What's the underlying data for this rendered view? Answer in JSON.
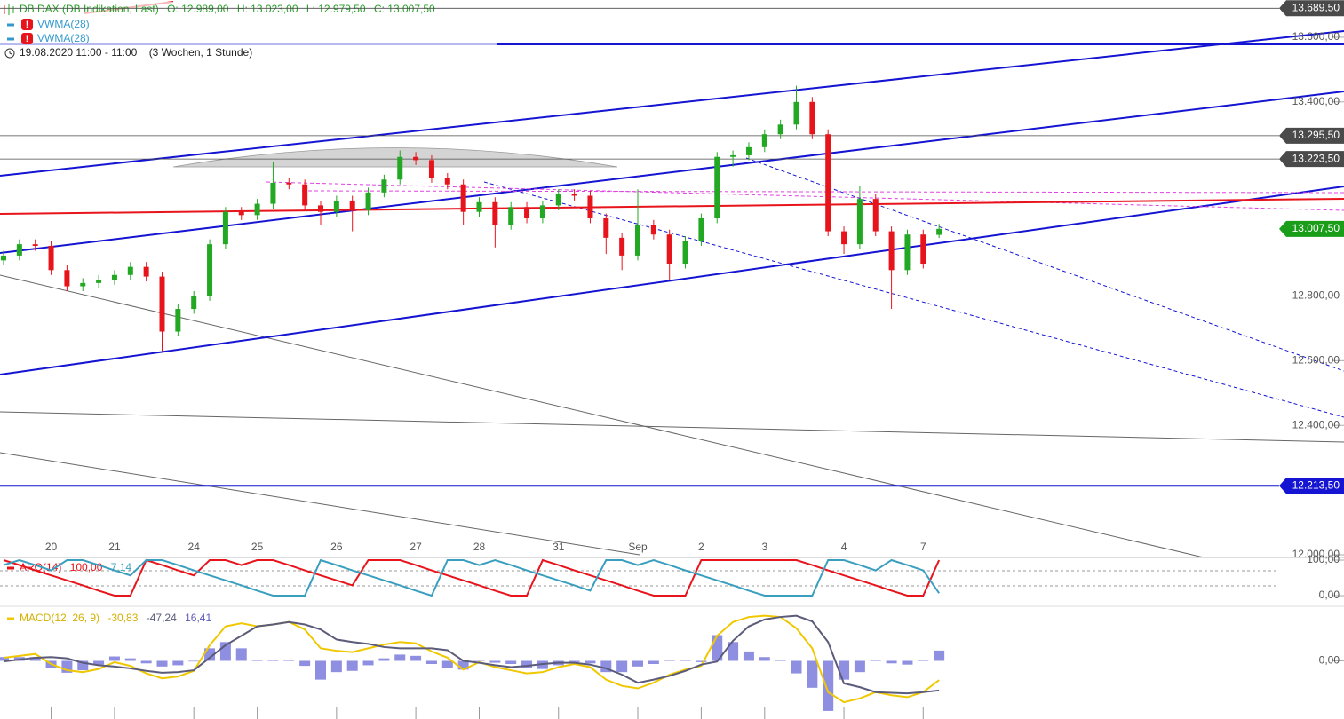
{
  "chart_data": {
    "type": "candlestick",
    "title": "DB DAX (DB Indikation, Last)",
    "ohlc_labels": [
      "O: 12.989,00",
      "H: 13.023,00",
      "L: 12.979,50",
      "C: 13.007,50"
    ],
    "overlays": [
      {
        "name": "VWMA(28)",
        "color": "#3399cc"
      },
      {
        "name": "VWMA(28)",
        "color": "#3399cc"
      }
    ],
    "period": "19.08.2020 11:00 - 11:00",
    "range": "(3 Wochen, 1 Stunde)",
    "up_color": "#22a822",
    "down_color": "#e8141c",
    "categories": [
      null,
      null,
      null,
      "20",
      null,
      null,
      null,
      "21",
      null,
      null,
      null,
      null,
      "24",
      null,
      null,
      null,
      "25",
      null,
      null,
      null,
      null,
      "26",
      null,
      null,
      null,
      null,
      "27",
      null,
      null,
      null,
      "28",
      null,
      null,
      null,
      null,
      "31",
      null,
      null,
      null,
      null,
      "Sep",
      null,
      null,
      null,
      "2",
      null,
      null,
      null,
      "3",
      null,
      null,
      null,
      null,
      "4",
      null,
      null,
      null,
      null,
      "7",
      null
    ],
    "open": [
      12910,
      12925,
      12960,
      12955,
      12880,
      12830,
      12840,
      12850,
      12865,
      12890,
      12860,
      12690,
      12760,
      12800,
      12960,
      13060,
      13050,
      13085,
      13150,
      13145,
      13080,
      13060,
      13095,
      13065,
      13120,
      13160,
      13230,
      13220,
      13165,
      13145,
      13060,
      13090,
      13020,
      13075,
      13040,
      13080,
      13115,
      13110,
      13040,
      12980,
      12925,
      13020,
      12990,
      12900,
      12970,
      13040,
      13230,
      13235,
      13260,
      13300,
      13330,
      13400,
      13300,
      13000,
      12960,
      13100,
      13000,
      12880,
      12990,
      12989
    ],
    "high": [
      12940,
      12975,
      12975,
      12970,
      12895,
      12855,
      12865,
      12880,
      12905,
      12905,
      12875,
      12775,
      12815,
      12975,
      13075,
      13075,
      13100,
      13215,
      13165,
      13160,
      13095,
      13110,
      13110,
      13135,
      13175,
      13250,
      13245,
      13235,
      13180,
      13160,
      13105,
      13105,
      13090,
      13090,
      13095,
      13130,
      13130,
      13125,
      13055,
      12995,
      13130,
      13035,
      13005,
      12985,
      13055,
      13245,
      13250,
      13275,
      13315,
      13345,
      13450,
      13415,
      13315,
      13015,
      13140,
      13115,
      13015,
      13005,
      13005,
      13023
    ],
    "low": [
      12895,
      12910,
      12940,
      12865,
      12815,
      12815,
      12825,
      12835,
      12850,
      12845,
      12630,
      12675,
      12745,
      12785,
      12945,
      13035,
      13035,
      13070,
      13130,
      13065,
      13020,
      13045,
      13000,
      13050,
      13105,
      13145,
      13205,
      13150,
      13130,
      13020,
      13045,
      12950,
      13005,
      13025,
      13025,
      13065,
      13095,
      13025,
      12930,
      12880,
      12910,
      12975,
      12850,
      12885,
      12955,
      13025,
      13200,
      13220,
      13245,
      13285,
      13315,
      13285,
      12985,
      12930,
      12945,
      12985,
      12760,
      12865,
      12885,
      12979.5
    ],
    "close": [
      12925,
      12960,
      12955,
      12880,
      12830,
      12840,
      12850,
      12865,
      12890,
      12860,
      12690,
      12760,
      12800,
      12960,
      13060,
      13050,
      13085,
      13150,
      13145,
      13080,
      13060,
      13095,
      13065,
      13120,
      13160,
      13230,
      13220,
      13165,
      13145,
      13060,
      13090,
      13020,
      13075,
      13040,
      13080,
      13115,
      13110,
      13040,
      12980,
      12925,
      13020,
      12990,
      12900,
      12970,
      13040,
      13230,
      13235,
      13260,
      13300,
      13330,
      13400,
      13300,
      13000,
      12960,
      13100,
      13000,
      12880,
      12990,
      12900,
      13007.5
    ],
    "ylim": [
      12000,
      13715
    ],
    "yticks": [
      {
        "value": 12000,
        "label": "12.000,00"
      },
      {
        "value": 12400,
        "label": "12.400,00"
      },
      {
        "value": 12600,
        "label": "12.600,00"
      },
      {
        "value": 12800,
        "label": "12.800,00"
      },
      {
        "value": 13400,
        "label": "13.400,00"
      },
      {
        "value": 13600,
        "label": "13.600,00"
      }
    ],
    "levels": [
      {
        "value": 13689.5,
        "label": "13.689,50",
        "color": "#4a4a4a",
        "line": true
      },
      {
        "value": 13295.5,
        "label": "13.295,50",
        "color": "#4a4a4a",
        "line": true
      },
      {
        "value": 13223.5,
        "label": "13.223,50",
        "color": "#4a4a4a",
        "line": true
      },
      {
        "value": 13007.5,
        "label": "13.007,50",
        "color": "#1a9e1a",
        "line": false
      },
      {
        "value": 12213.5,
        "label": "12.213,50",
        "color": "#1414d2",
        "line": true
      }
    ],
    "aroon": {
      "title": "ARO(14)",
      "ylim": [
        0,
        100
      ],
      "yticks": [
        {
          "value": 100,
          "label": "100,00"
        },
        {
          "value": 0,
          "label": "0,00"
        }
      ],
      "series": [
        {
          "color": "#e8141c",
          "value_label": "100,00",
          "values": [
            100,
            86,
            71,
            57,
            43,
            29,
            14,
            0,
            0,
            100,
            86,
            71,
            57,
            100,
            100,
            86,
            100,
            100,
            86,
            71,
            57,
            43,
            29,
            100,
            100,
            100,
            86,
            71,
            57,
            43,
            29,
            14,
            0,
            0,
            100,
            86,
            71,
            57,
            43,
            29,
            14,
            0,
            0,
            0,
            100,
            100,
            100,
            100,
            100,
            100,
            100,
            86,
            71,
            57,
            43,
            29,
            14,
            0,
            0,
            100
          ]
        },
        {
          "color": "#3a9fbf",
          "value_label": "7,14",
          "values": [
            86,
            100,
            86,
            71,
            100,
            100,
            86,
            71,
            57,
            100,
            100,
            86,
            71,
            57,
            43,
            29,
            14,
            0,
            0,
            0,
            100,
            86,
            71,
            57,
            43,
            29,
            14,
            0,
            100,
            100,
            86,
            100,
            86,
            71,
            57,
            43,
            29,
            14,
            100,
            100,
            86,
            100,
            86,
            71,
            57,
            43,
            29,
            14,
            0,
            0,
            0,
            0,
            100,
            100,
            86,
            71,
            100,
            86,
            71,
            7.14
          ]
        }
      ]
    },
    "macd": {
      "title": "MACD(12, 26, 9)",
      "ylim": [
        -90,
        80
      ],
      "yticks": [
        {
          "value": 0,
          "label": "0,00"
        }
      ],
      "series": [
        {
          "type": "line",
          "color": "#f0c800",
          "value_label": "-30,83",
          "values": [
            5,
            8,
            11,
            -5,
            -15,
            -18,
            -13,
            -2,
            -8,
            -20,
            -28,
            -25,
            -16,
            25,
            55,
            60,
            55,
            58,
            62,
            50,
            20,
            16,
            14,
            20,
            26,
            30,
            28,
            15,
            5,
            -14,
            -2,
            -10,
            -15,
            -20,
            -18,
            -10,
            -5,
            -10,
            -30,
            -40,
            -44,
            -35,
            -22,
            -14,
            -8,
            40,
            62,
            70,
            72,
            70,
            52,
            20,
            -50,
            -66,
            -60,
            -50,
            -55,
            -58,
            -50,
            -30.83
          ]
        },
        {
          "type": "line",
          "color": "#5b5b7a",
          "value_label": "-47,24",
          "values": [
            -1,
            2,
            5,
            6,
            4,
            -3,
            -7,
            -9,
            -12,
            -16,
            -19,
            -18,
            -15,
            5,
            25,
            40,
            55,
            58,
            62,
            58,
            50,
            34,
            30,
            27,
            22,
            20,
            20,
            20,
            17,
            0,
            -3,
            -7,
            -10,
            -8,
            -5,
            -3,
            -3,
            -6,
            -12,
            -22,
            -35,
            -30,
            -24,
            -16,
            -6,
            -1,
            32,
            55,
            66,
            70,
            72,
            63,
            30,
            -36,
            -42,
            -50,
            -51,
            -52,
            -50,
            -47.24
          ]
        },
        {
          "type": "bar",
          "color": "#7b7bdd",
          "value_label": "16,41",
          "values": [
            6,
            6,
            6,
            -11,
            -19,
            -15,
            -6,
            7,
            4,
            -4,
            -9,
            -7,
            -1,
            20,
            30,
            20,
            0,
            0,
            0,
            -8,
            -30,
            -18,
            -16,
            -7,
            4,
            10,
            8,
            -5,
            -12,
            -14,
            1,
            -3,
            -5,
            -12,
            -13,
            -7,
            -2,
            -4,
            -18,
            -18,
            -9,
            -5,
            2,
            2,
            -2,
            41,
            30,
            15,
            6,
            0,
            -20,
            -43,
            -80,
            -30,
            -18,
            0,
            -4,
            -6,
            0,
            16.41
          ]
        }
      ]
    }
  }
}
